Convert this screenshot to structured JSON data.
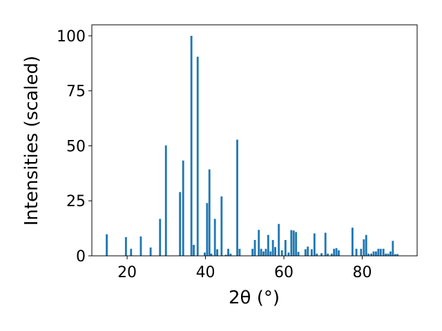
{
  "chart_data": {
    "type": "bar",
    "title": "",
    "xlabel": "2θ (°)",
    "ylabel": "Intensities (scaled)",
    "xlim": [
      11,
      94
    ],
    "ylim": [
      0,
      105
    ],
    "xticks": [
      "20",
      "40",
      "60",
      "80"
    ],
    "yticks": [
      "0",
      "25",
      "50",
      "75",
      "100"
    ],
    "grid": false,
    "bar_color": "#1f77b4",
    "series": [
      {
        "x": [
          14.8,
          19.7,
          21.0,
          23.5,
          26.0,
          28.4,
          29.9,
          33.5,
          34.3,
          36.4,
          37.0,
          38.0,
          39.8,
          40.4,
          41.0,
          41.5,
          42.4,
          43.0,
          44.1,
          45.2,
          45.8,
          46.4,
          48.1,
          48.7,
          52.0,
          52.6,
          53.6,
          54.2,
          54.8,
          55.4,
          56.0,
          56.6,
          57.2,
          57.8,
          58.7,
          59.5,
          60.4,
          61.2,
          61.9,
          62.5,
          63.1,
          63.7,
          65.5,
          66.1,
          67.1,
          67.8,
          68.4,
          69.6,
          70.6,
          71.2,
          72.2,
          72.8,
          73.4,
          74.0,
          77.5,
          78.5,
          79.7,
          80.4,
          81.0,
          81.6,
          82.3,
          82.9,
          83.5,
          84.1,
          84.7,
          85.4,
          86.0,
          86.6,
          87.2,
          87.8,
          88.4,
          89.0
        ],
        "values": [
          9.8,
          8.5,
          3.2,
          8.8,
          3.8,
          16.8,
          50.2,
          29.0,
          43.3,
          100.0,
          5.0,
          90.5,
          1.5,
          24.0,
          39.3,
          1.0,
          16.8,
          3.0,
          27.0,
          0.5,
          3.2,
          1.0,
          52.8,
          3.2,
          3.2,
          7.2,
          11.8,
          3.2,
          2.0,
          3.2,
          9.5,
          2.0,
          7.2,
          4.0,
          14.5,
          2.5,
          7.2,
          1.5,
          11.7,
          11.5,
          10.8,
          1.8,
          3.0,
          4.2,
          3.0,
          10.2,
          1.0,
          1.2,
          10.5,
          1.0,
          1.0,
          3.2,
          3.5,
          2.5,
          12.8,
          3.2,
          3.2,
          7.5,
          9.5,
          1.0,
          1.0,
          2.0,
          2.0,
          3.2,
          3.2,
          3.2,
          1.0,
          1.0,
          2.0,
          6.8,
          0.8,
          0.8
        ]
      }
    ]
  }
}
